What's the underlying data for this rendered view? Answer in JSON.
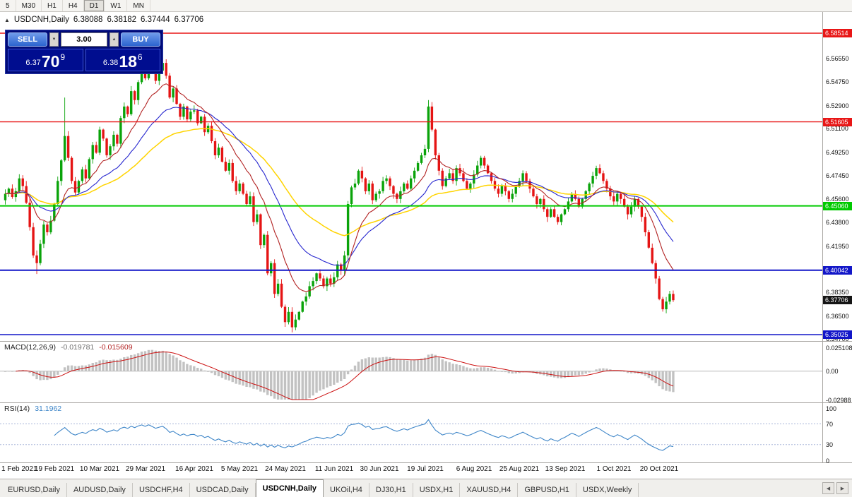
{
  "toolbar": {
    "timeframes": [
      "5",
      "M30",
      "H1",
      "H4",
      "D1",
      "W1",
      "MN"
    ],
    "active": "D1"
  },
  "chart": {
    "title": {
      "collapse": "▲",
      "symbol": "USDCNH,Daily",
      "open": "6.38088",
      "high": "6.38182",
      "low": "6.37444",
      "close": "6.37706"
    },
    "trade_widget": {
      "sell_label": "SELL",
      "buy_label": "BUY",
      "volume": "3.00",
      "spin_down": "▼",
      "spin_up": "▲",
      "bid": {
        "prefix": "6.37",
        "big": "70",
        "sup": "9"
      },
      "ask": {
        "prefix": "6.38",
        "big": "18",
        "sup": "6"
      }
    },
    "price_axis": {
      "ticks": [
        "6.56550",
        "6.54750",
        "6.52900",
        "6.51100",
        "6.49250",
        "6.47450",
        "6.45600",
        "6.43800",
        "6.41950",
        "6.38350",
        "6.36500",
        "6.34700"
      ]
    },
    "levels": [
      {
        "value": "6.58514",
        "color": "#e81616",
        "lw": 1.4
      },
      {
        "value": "6.51605",
        "color": "#e81616",
        "lw": 1.4
      },
      {
        "value": "6.45060",
        "color": "#00ca00",
        "lw": 2
      },
      {
        "value": "6.40042",
        "color": "#1216c8",
        "lw": 2
      },
      {
        "value": "6.35025",
        "color": "#1216c8",
        "lw": 1.4
      }
    ],
    "current_price": {
      "value": "6.37706",
      "color": "#151515"
    },
    "x_axis": {
      "labels": [
        {
          "text": "1 Feb 2021",
          "index": 0
        },
        {
          "text": "19 Feb 2021",
          "index": 14
        },
        {
          "text": "10 Mar 2021",
          "index": 27
        },
        {
          "text": "29 Mar 2021",
          "index": 40
        },
        {
          "text": "16 Apr 2021",
          "index": 54
        },
        {
          "text": "5 May 2021",
          "index": 67
        },
        {
          "text": "24 May 2021",
          "index": 80
        },
        {
          "text": "11 Jun 2021",
          "index": 94
        },
        {
          "text": "30 Jun 2021",
          "index": 107
        },
        {
          "text": "19 Jul 2021",
          "index": 120
        },
        {
          "text": "6 Aug 2021",
          "index": 134
        },
        {
          "text": "25 Aug 2021",
          "index": 147
        },
        {
          "text": "13 Sep 2021",
          "index": 160
        },
        {
          "text": "1 Oct 2021",
          "index": 174
        },
        {
          "text": "20 Oct 2021",
          "index": 187
        }
      ]
    }
  },
  "chart_data": {
    "type": "candlestick",
    "symbol": "USDCNH",
    "timeframe": "Daily",
    "ylim": [
      6.342,
      6.592
    ],
    "first_open": 6.455,
    "closes": [
      6.46,
      6.464,
      6.4575,
      6.462,
      6.472,
      6.466,
      6.453,
      6.434,
      6.412,
      6.406,
      6.421,
      6.436,
      6.43,
      6.439,
      6.452,
      6.47,
      6.486,
      6.505,
      6.488,
      6.47,
      6.461,
      6.47,
      6.479,
      6.472,
      6.487,
      6.498,
      6.492,
      6.51,
      6.503,
      6.49,
      6.497,
      6.506,
      6.499,
      6.519,
      6.528,
      6.522,
      6.54,
      6.533,
      6.547,
      6.556,
      6.55,
      6.563,
      6.556,
      6.548,
      6.556,
      6.562,
      6.552,
      6.535,
      6.542,
      6.53,
      6.52,
      6.528,
      6.518,
      6.524,
      6.525,
      6.515,
      6.52,
      6.508,
      6.513,
      6.501,
      6.49,
      6.496,
      6.485,
      6.478,
      6.484,
      6.47,
      6.462,
      6.468,
      6.46,
      6.452,
      6.458,
      6.438,
      6.444,
      6.42,
      6.428,
      6.398,
      6.406,
      6.382,
      6.39,
      6.372,
      6.36,
      6.368,
      6.356,
      6.362,
      6.368,
      6.376,
      6.38,
      6.388,
      6.392,
      6.398,
      6.394,
      6.388,
      6.394,
      6.39,
      6.395,
      6.405,
      6.4,
      6.412,
      6.452,
      6.465,
      6.468,
      6.478,
      6.472,
      6.462,
      6.468,
      6.455,
      6.46,
      6.462,
      6.47,
      6.472,
      6.466,
      6.46,
      6.456,
      6.462,
      6.468,
      6.464,
      6.472,
      6.478,
      6.484,
      6.49,
      6.495,
      6.528,
      6.51,
      6.49,
      6.478,
      6.466,
      6.472,
      6.476,
      6.47,
      6.48,
      6.476,
      6.47,
      6.464,
      6.468,
      6.475,
      6.482,
      6.488,
      6.482,
      6.476,
      6.47,
      6.464,
      6.46,
      6.466,
      6.462,
      6.456,
      6.46,
      6.466,
      6.47,
      6.476,
      6.47,
      6.464,
      6.458,
      6.452,
      6.456,
      6.448,
      6.442,
      6.448,
      6.442,
      6.438,
      6.444,
      6.448,
      6.454,
      6.46,
      6.456,
      6.45,
      6.456,
      6.462,
      6.468,
      6.474,
      6.48,
      6.476,
      6.47,
      6.464,
      6.458,
      6.454,
      6.46,
      6.456,
      6.45,
      6.444,
      6.45,
      6.456,
      6.45,
      6.442,
      6.43,
      6.418,
      6.406,
      6.394,
      6.378,
      6.37,
      6.376,
      6.382,
      6.3771
    ],
    "spikes": {
      "9": {
        "low": 6.3975
      },
      "17": {
        "high": 6.535
      },
      "41": {
        "high": 6.5655
      },
      "45": {
        "high": 6.5645
      },
      "82": {
        "low": 6.352
      },
      "121": {
        "high": 6.533
      }
    },
    "colors": {
      "up": "#0aa30a",
      "down": "#e51414"
    },
    "ma": [
      {
        "type": "ema",
        "period": 50,
        "color": "#ffd400",
        "lw": 1.5
      },
      {
        "type": "ema",
        "period": 26,
        "color": "#2727cf",
        "lw": 1.1
      },
      {
        "type": "ema",
        "period": 12,
        "color": "#b22222",
        "lw": 1.1
      }
    ]
  },
  "macd": {
    "label": "MACD(12,26,9)",
    "value_main": "-0.019781",
    "value_signal": "-0.015609",
    "axis": [
      "0.025108",
      "0.00",
      "-0.02988"
    ],
    "fast": 12,
    "slow": 26,
    "signal": 9,
    "hist_color": "#c2c2c2",
    "signal_color": "#cc1111"
  },
  "rsi": {
    "label": "RSI(14)",
    "value": "31.1962",
    "axis": [
      "100",
      "70",
      "30",
      "0"
    ],
    "levels": [
      70,
      30
    ],
    "period": 14,
    "line_color": "#3d85c8"
  },
  "tabs": {
    "items": [
      "EURUSD,Daily",
      "AUDUSD,Daily",
      "USDCHF,H4",
      "USDCAD,Daily",
      "USDCNH,Daily",
      "UKOil,H4",
      "DJ30,H1",
      "USDX,H1",
      "XAUUSD,H4",
      "GBPUSD,H1",
      "USDX,Weekly"
    ],
    "active_index": 4,
    "scroll_left": "◀",
    "scroll_right": "▶"
  }
}
